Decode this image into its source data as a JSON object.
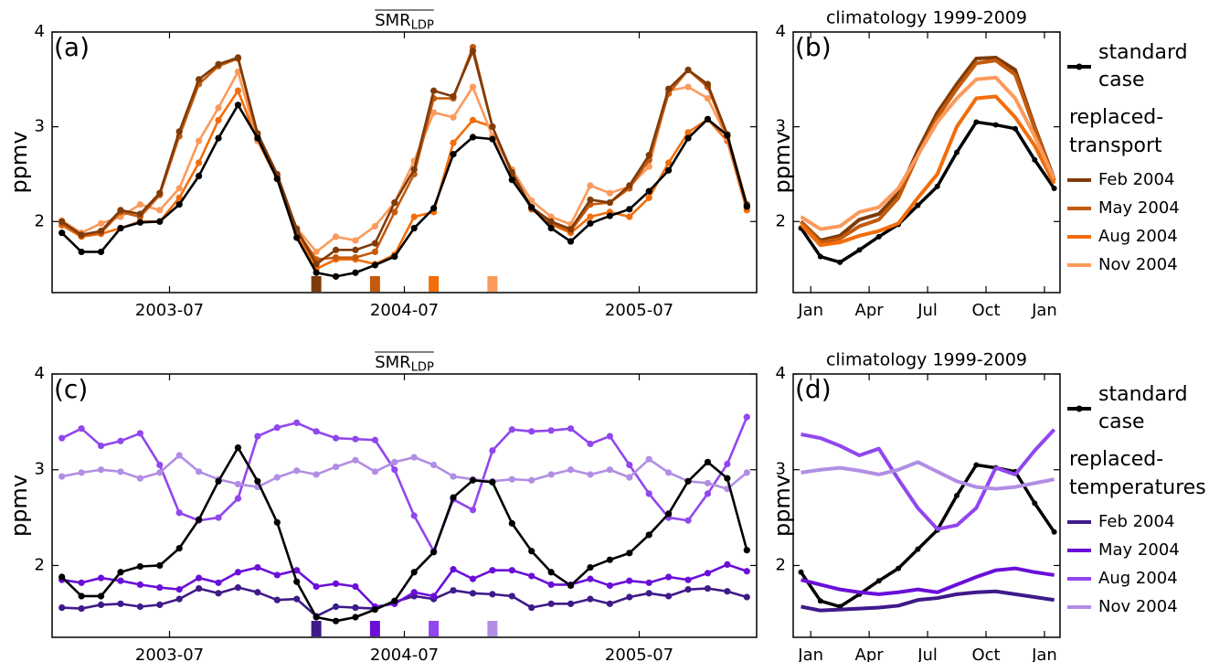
{
  "chart_data": [
    {
      "type": "line",
      "title": "SMR",
      "title_subscript": "LDP",
      "panel_label": "(a)",
      "ylabel": "ppmv",
      "x": [
        "2003-01",
        "2003-02",
        "2003-03",
        "2003-04",
        "2003-05",
        "2003-06",
        "2003-07",
        "2003-08",
        "2003-09",
        "2003-10",
        "2003-11",
        "2003-12",
        "2004-01",
        "2004-02",
        "2004-03",
        "2004-04",
        "2004-05",
        "2004-06",
        "2004-07",
        "2004-08",
        "2004-09",
        "2004-10",
        "2004-11",
        "2004-12",
        "2005-01",
        "2005-02",
        "2005-03",
        "2005-04",
        "2005-05",
        "2005-06",
        "2005-07",
        "2005-08",
        "2005-09",
        "2005-10",
        "2005-11",
        "2005-12"
      ],
      "xlim": [
        "2003-01",
        "2006-01"
      ],
      "xticks": [
        "2003-07",
        "2004-07",
        "2005-07"
      ],
      "ylim": [
        1.25,
        4
      ],
      "yticks": [
        2,
        3,
        4
      ],
      "series": [
        {
          "color": "#f26d0a",
          "marker": true,
          "highlight": "2004-08",
          "values": [
            1.96,
            1.84,
            1.87,
            1.93,
            2.0,
            2.0,
            2.25,
            2.62,
            3.07,
            3.38,
            2.85,
            2.45,
            1.88,
            1.5,
            1.6,
            1.6,
            1.55,
            1.65,
            2.05,
            2.1,
            2.83,
            3.07,
            3.0,
            2.5,
            2.13,
            1.97,
            1.88,
            2.05,
            2.1,
            2.05,
            2.25,
            2.62,
            2.94,
            3.08,
            2.85,
            2.12
          ]
        },
        {
          "color": "#fb9a5b",
          "marker": true,
          "highlight": "2004-11",
          "values": [
            2.01,
            1.88,
            1.98,
            2.05,
            2.18,
            2.12,
            2.35,
            2.85,
            3.2,
            3.58,
            2.85,
            2.48,
            1.93,
            1.68,
            1.84,
            1.8,
            1.95,
            2.2,
            2.64,
            3.15,
            3.1,
            3.42,
            2.9,
            2.55,
            2.22,
            2.05,
            1.97,
            2.38,
            2.3,
            2.37,
            2.58,
            3.38,
            3.42,
            3.3,
            2.88,
            2.15
          ]
        },
        {
          "color": "#c45a0e",
          "marker": true,
          "highlight": "2004-05",
          "values": [
            1.98,
            1.85,
            1.88,
            2.1,
            2.05,
            2.28,
            2.9,
            3.45,
            3.64,
            3.72,
            2.9,
            2.48,
            1.9,
            1.6,
            1.62,
            1.62,
            1.68,
            2.1,
            2.5,
            3.3,
            3.3,
            3.84,
            3.0,
            2.5,
            2.13,
            1.98,
            1.9,
            2.18,
            2.2,
            2.35,
            2.65,
            3.35,
            3.6,
            3.42,
            2.9,
            2.15
          ]
        },
        {
          "color": "#7f3b08",
          "marker": true,
          "highlight": "2004-02",
          "values": [
            2.0,
            1.86,
            1.9,
            2.12,
            2.08,
            2.3,
            2.95,
            3.5,
            3.66,
            3.73,
            2.93,
            2.5,
            1.92,
            1.55,
            1.7,
            1.7,
            1.77,
            2.2,
            2.55,
            3.38,
            3.32,
            3.8,
            3.0,
            2.52,
            2.15,
            2.0,
            1.92,
            2.23,
            2.2,
            2.38,
            2.7,
            3.4,
            3.6,
            3.45,
            2.92,
            2.18
          ]
        },
        {
          "color": "#000000",
          "marker": true,
          "values": [
            1.88,
            1.68,
            1.68,
            1.93,
            1.99,
            2.0,
            2.18,
            2.48,
            2.88,
            3.23,
            2.88,
            2.45,
            1.83,
            1.46,
            1.42,
            1.46,
            1.54,
            1.63,
            1.93,
            2.14,
            2.71,
            2.89,
            2.87,
            2.44,
            2.15,
            1.93,
            1.79,
            1.98,
            2.06,
            2.13,
            2.32,
            2.54,
            2.88,
            3.08,
            2.91,
            2.16
          ]
        }
      ]
    },
    {
      "type": "line",
      "title": "climatology 1999-2009",
      "panel_label": "(b)",
      "ylabel": "ppmv",
      "x": [
        0.5,
        1.5,
        2.5,
        3.5,
        4.5,
        5.5,
        6.5,
        7.5,
        8.5,
        9.5,
        10.5,
        11.5,
        12.5,
        13.5
      ],
      "xlim": [
        0.1,
        13.8
      ],
      "xticks": [
        {
          "value": 1,
          "label": "Jan"
        },
        {
          "value": 4,
          "label": "Apr"
        },
        {
          "value": 7,
          "label": "Jul"
        },
        {
          "value": 10,
          "label": "Oct"
        },
        {
          "value": 13,
          "label": "Jan"
        }
      ],
      "ylim": [
        1.25,
        4
      ],
      "yticks": [
        2,
        3,
        4
      ],
      "legend": "outside right",
      "legend_title": "replaced-transport",
      "series": [
        {
          "name": "standard case",
          "color": "#000000",
          "marker": true,
          "values": [
            1.93,
            1.63,
            1.57,
            1.7,
            1.84,
            1.97,
            2.17,
            2.37,
            2.73,
            3.05,
            3.02,
            2.98,
            2.65,
            2.35
          ]
        },
        {
          "name": "Feb 2004",
          "color": "#7f3b08",
          "marker": false,
          "values": [
            2.0,
            1.8,
            1.85,
            2.02,
            2.08,
            2.3,
            2.75,
            3.15,
            3.45,
            3.72,
            3.73,
            3.6,
            3.0,
            2.45
          ]
        },
        {
          "name": "May 2004",
          "color": "#c45a0e",
          "marker": false,
          "values": [
            2.0,
            1.78,
            1.82,
            1.95,
            2.02,
            2.25,
            2.7,
            3.1,
            3.4,
            3.67,
            3.7,
            3.55,
            2.98,
            2.43
          ]
        },
        {
          "name": "Aug 2004",
          "color": "#f26d0a",
          "marker": false,
          "values": [
            1.97,
            1.75,
            1.78,
            1.85,
            1.9,
            1.98,
            2.25,
            2.5,
            3.0,
            3.3,
            3.32,
            3.1,
            2.8,
            2.4
          ]
        },
        {
          "name": "Nov 2004",
          "color": "#fb9a5b",
          "marker": false,
          "values": [
            2.05,
            1.92,
            1.95,
            2.1,
            2.15,
            2.35,
            2.7,
            3.05,
            3.3,
            3.5,
            3.52,
            3.3,
            2.9,
            2.45
          ]
        }
      ]
    },
    {
      "type": "line",
      "title": "SMR",
      "title_subscript": "LDP",
      "panel_label": "(c)",
      "ylabel": "ppmv",
      "x": [
        "2003-01",
        "2003-02",
        "2003-03",
        "2003-04",
        "2003-05",
        "2003-06",
        "2003-07",
        "2003-08",
        "2003-09",
        "2003-10",
        "2003-11",
        "2003-12",
        "2004-01",
        "2004-02",
        "2004-03",
        "2004-04",
        "2004-05",
        "2004-06",
        "2004-07",
        "2004-08",
        "2004-09",
        "2004-10",
        "2004-11",
        "2004-12",
        "2005-01",
        "2005-02",
        "2005-03",
        "2005-04",
        "2005-05",
        "2005-06",
        "2005-07",
        "2005-08",
        "2005-09",
        "2005-10",
        "2005-11",
        "2005-12"
      ],
      "xlim": [
        "2003-01",
        "2006-01"
      ],
      "xticks": [
        "2003-07",
        "2004-07",
        "2005-07"
      ],
      "ylim": [
        1.25,
        4
      ],
      "yticks": [
        2,
        3,
        4
      ],
      "series": [
        {
          "color": "#3f1a8a",
          "marker": true,
          "highlight": "2004-02",
          "values": [
            1.56,
            1.55,
            1.59,
            1.6,
            1.57,
            1.59,
            1.65,
            1.76,
            1.71,
            1.77,
            1.72,
            1.64,
            1.65,
            1.47,
            1.57,
            1.56,
            1.55,
            1.62,
            1.68,
            1.65,
            1.74,
            1.71,
            1.7,
            1.68,
            1.56,
            1.6,
            1.6,
            1.65,
            1.6,
            1.67,
            1.71,
            1.68,
            1.75,
            1.76,
            1.73,
            1.67
          ]
        },
        {
          "color": "#6a0fd8",
          "marker": true,
          "highlight": "2004-05",
          "values": [
            1.85,
            1.82,
            1.87,
            1.84,
            1.8,
            1.77,
            1.75,
            1.87,
            1.82,
            1.93,
            1.98,
            1.9,
            1.95,
            1.78,
            1.81,
            1.78,
            1.57,
            1.6,
            1.72,
            1.68,
            1.96,
            1.86,
            1.95,
            1.95,
            1.89,
            1.8,
            1.8,
            1.86,
            1.79,
            1.84,
            1.82,
            1.88,
            1.85,
            1.92,
            2.01,
            1.94
          ]
        },
        {
          "color": "#9146ee",
          "marker": true,
          "highlight": "2004-08",
          "values": [
            3.33,
            3.43,
            3.25,
            3.3,
            3.38,
            3.05,
            2.55,
            2.47,
            2.5,
            2.7,
            3.35,
            3.44,
            3.49,
            3.4,
            3.33,
            3.32,
            3.31,
            3.0,
            2.52,
            2.15,
            2.69,
            2.58,
            3.2,
            3.42,
            3.4,
            3.41,
            3.43,
            3.27,
            3.35,
            3.05,
            2.75,
            2.5,
            2.47,
            2.75,
            3.06,
            3.55
          ]
        },
        {
          "color": "#b18ee4",
          "marker": true,
          "highlight": "2004-11",
          "values": [
            2.93,
            2.97,
            3.0,
            2.98,
            2.91,
            2.97,
            3.15,
            2.98,
            2.9,
            2.85,
            2.82,
            2.92,
            2.99,
            2.95,
            3.03,
            3.1,
            2.98,
            3.08,
            3.13,
            3.05,
            2.93,
            2.9,
            2.88,
            2.9,
            2.89,
            2.95,
            3.0,
            2.95,
            3.0,
            2.92,
            3.11,
            2.97,
            2.88,
            2.86,
            2.8,
            2.97
          ]
        },
        {
          "color": "#000000",
          "marker": true,
          "values": [
            1.88,
            1.68,
            1.68,
            1.93,
            1.99,
            2.0,
            2.18,
            2.48,
            2.88,
            3.23,
            2.88,
            2.45,
            1.83,
            1.46,
            1.42,
            1.46,
            1.54,
            1.63,
            1.93,
            2.14,
            2.71,
            2.89,
            2.87,
            2.44,
            2.15,
            1.93,
            1.79,
            1.98,
            2.06,
            2.13,
            2.32,
            2.54,
            2.88,
            3.08,
            2.91,
            2.16
          ]
        }
      ]
    },
    {
      "type": "line",
      "title": "climatology 1999-2009",
      "panel_label": "(d)",
      "ylabel": "ppmv",
      "x": [
        0.5,
        1.5,
        2.5,
        3.5,
        4.5,
        5.5,
        6.5,
        7.5,
        8.5,
        9.5,
        10.5,
        11.5,
        12.5,
        13.5
      ],
      "xlim": [
        0.1,
        13.8
      ],
      "xticks": [
        {
          "value": 1,
          "label": "Jan"
        },
        {
          "value": 4,
          "label": "Apr"
        },
        {
          "value": 7,
          "label": "Jul"
        },
        {
          "value": 10,
          "label": "Oct"
        },
        {
          "value": 13,
          "label": "Jan"
        }
      ],
      "ylim": [
        1.25,
        4
      ],
      "yticks": [
        2,
        3,
        4
      ],
      "legend": "outside right",
      "legend_title": "replaced-temperatures",
      "series": [
        {
          "name": "standard case",
          "color": "#000000",
          "marker": true,
          "values": [
            1.93,
            1.63,
            1.57,
            1.7,
            1.84,
            1.97,
            2.17,
            2.37,
            2.73,
            3.05,
            3.02,
            2.98,
            2.65,
            2.35
          ]
        },
        {
          "name": "Feb 2004",
          "color": "#3f1a8a",
          "marker": false,
          "values": [
            1.57,
            1.53,
            1.54,
            1.55,
            1.56,
            1.58,
            1.64,
            1.66,
            1.7,
            1.72,
            1.73,
            1.7,
            1.67,
            1.64
          ]
        },
        {
          "name": "May 2004",
          "color": "#6a0fd8",
          "marker": false,
          "values": [
            1.85,
            1.8,
            1.75,
            1.72,
            1.7,
            1.72,
            1.75,
            1.72,
            1.8,
            1.88,
            1.95,
            1.97,
            1.93,
            1.9
          ]
        },
        {
          "name": "Aug 2004",
          "color": "#9146ee",
          "marker": false,
          "values": [
            3.37,
            3.33,
            3.25,
            3.15,
            3.22,
            2.9,
            2.6,
            2.38,
            2.42,
            2.6,
            3.02,
            2.95,
            3.2,
            3.42
          ]
        },
        {
          "name": "Nov 2004",
          "color": "#b18ee4",
          "marker": false,
          "values": [
            2.97,
            3.0,
            3.02,
            2.99,
            2.95,
            3.0,
            3.08,
            2.98,
            2.88,
            2.82,
            2.8,
            2.82,
            2.86,
            2.9
          ]
        }
      ]
    }
  ]
}
